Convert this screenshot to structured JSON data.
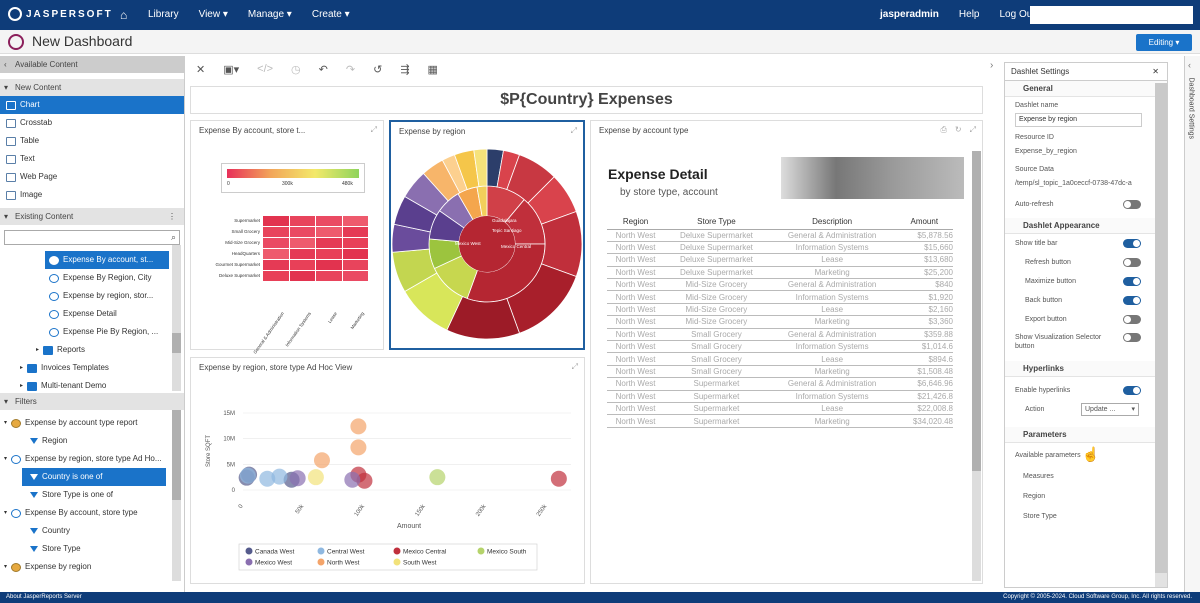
{
  "topbar": {
    "logo": "JASPERSOFT",
    "nav": [
      "Library",
      "View",
      "Manage",
      "Create"
    ],
    "user": "jasperadmin",
    "help": "Help",
    "logout": "Log Out"
  },
  "titlebar": {
    "title": "New Dashboard",
    "mode": "Editing ▾"
  },
  "left": {
    "available_header": "Available Content",
    "new_content_header": "New Content",
    "new_items": [
      "Chart",
      "Crosstab",
      "Table",
      "Text",
      "Web Page",
      "Image"
    ],
    "existing_header": "Existing Content",
    "existing_items": [
      "Expense By account, st...",
      "Expense By Region, City",
      "Expense by region, stor...",
      "Expense Detail",
      "Expense Pie By Region, ..."
    ],
    "folders": [
      "Reports",
      "Invoices Templates",
      "Multi-tenant Demo"
    ],
    "filters_header": "Filters",
    "filter_tree": [
      {
        "label": "Expense by account type report",
        "level": 0,
        "kind": "report"
      },
      {
        "label": "Region",
        "level": 1,
        "kind": "filter"
      },
      {
        "label": "Expense by region, store type Ad Ho...",
        "level": 0,
        "kind": "chart"
      },
      {
        "label": "Country is one of",
        "level": 1,
        "kind": "filter",
        "selected": true
      },
      {
        "label": "Store Type is one of",
        "level": 1,
        "kind": "filter"
      },
      {
        "label": "Expense By account, store type",
        "level": 0,
        "kind": "chart"
      },
      {
        "label": "Country",
        "level": 1,
        "kind": "filter"
      },
      {
        "label": "Store Type",
        "level": 1,
        "kind": "filter"
      },
      {
        "label": "Expense by region",
        "level": 0,
        "kind": "report"
      }
    ]
  },
  "dashboard": {
    "title": "$P{Country} Expenses",
    "dashlet1_title": "Expense By account, store t...",
    "dashlet2_title": "Expense by region",
    "dashlet3_title": "Expense by account type",
    "dashlet4_title": "Expense by region, store type Ad Hoc View",
    "heatmap": {
      "legend_ticks": [
        "0",
        "300k",
        "480k"
      ],
      "rows": [
        "Supermarket",
        "Small Grocery",
        "Mid-Size Grocery",
        "HeadQuarters",
        "Gourmet Supermarket",
        "Deluxe Supermarket"
      ],
      "cols": [
        "General & Administration",
        "Information Systems",
        "Lease",
        "Marketing"
      ]
    },
    "sunburst_labels": [
      "Guadalajara",
      "Tepic Santiago",
      "Mexico West",
      "Mexico Central"
    ],
    "detail": {
      "title": "Expense Detail",
      "subtitle": "by store type, account",
      "headers": [
        "Region",
        "Store Type",
        "Description",
        "Amount"
      ],
      "rows": [
        [
          "North West",
          "Deluxe Supermarket",
          "General & Administration",
          "$5,878.56"
        ],
        [
          "North West",
          "Deluxe Supermarket",
          "Information Systems",
          "$15,660"
        ],
        [
          "North West",
          "Deluxe Supermarket",
          "Lease",
          "$13,680"
        ],
        [
          "North West",
          "Deluxe Supermarket",
          "Marketing",
          "$25,200"
        ],
        [
          "North West",
          "Mid-Size Grocery",
          "General & Administration",
          "$840"
        ],
        [
          "North West",
          "Mid-Size Grocery",
          "Information Systems",
          "$1,920"
        ],
        [
          "North West",
          "Mid-Size Grocery",
          "Lease",
          "$2,160"
        ],
        [
          "North West",
          "Mid-Size Grocery",
          "Marketing",
          "$3,360"
        ],
        [
          "North West",
          "Small Grocery",
          "General & Administration",
          "$359.88"
        ],
        [
          "North West",
          "Small Grocery",
          "Information Systems",
          "$1,014.6"
        ],
        [
          "North West",
          "Small Grocery",
          "Lease",
          "$894.6"
        ],
        [
          "North West",
          "Small Grocery",
          "Marketing",
          "$1,508.48"
        ],
        [
          "North West",
          "Supermarket",
          "General & Administration",
          "$6,646.96"
        ],
        [
          "North West",
          "Supermarket",
          "Information Systems",
          "$21,426.8"
        ],
        [
          "North West",
          "Supermarket",
          "Lease",
          "$22,008.8"
        ],
        [
          "North West",
          "Supermarket",
          "Marketing",
          "$34,020.48"
        ]
      ]
    }
  },
  "chart_data": {
    "type": "scatter",
    "xlabel": "Amount",
    "ylabel": "Store SQFT",
    "x_ticks": [
      "0",
      "50k",
      "100k",
      "150k",
      "200k",
      "250k"
    ],
    "y_ticks": [
      "0",
      "5M",
      "10M",
      "15M"
    ],
    "xlim": [
      0,
      270000
    ],
    "ylim": [
      0,
      15000000
    ],
    "series": [
      {
        "name": "Canada West",
        "color": "#555b8c",
        "points": [
          [
            3000,
            2400000
          ],
          [
            5000,
            3000000
          ],
          [
            40000,
            2000000
          ]
        ]
      },
      {
        "name": "Central West",
        "color": "#8fb8e0",
        "points": [
          [
            4000,
            2800000
          ],
          [
            20000,
            2200000
          ],
          [
            30000,
            2600000
          ]
        ]
      },
      {
        "name": "Mexico Central",
        "color": "#c0303d",
        "points": [
          [
            95000,
            3000000
          ],
          [
            100000,
            1800000
          ],
          [
            260000,
            2200000
          ]
        ]
      },
      {
        "name": "Mexico South",
        "color": "#b5d36b",
        "points": [
          [
            160000,
            2500000
          ]
        ]
      },
      {
        "name": "Mexico West",
        "color": "#8a6fb0",
        "points": [
          [
            90000,
            2000000
          ],
          [
            45000,
            2300000
          ]
        ]
      },
      {
        "name": "North West",
        "color": "#f4a46a",
        "points": [
          [
            95000,
            12400000
          ],
          [
            65000,
            5800000
          ],
          [
            95000,
            8300000
          ]
        ]
      },
      {
        "name": "South West",
        "color": "#f2e27a",
        "points": [
          [
            60000,
            2500000
          ]
        ]
      }
    ]
  },
  "settings": {
    "header": "Dashlet Settings",
    "general": "General",
    "dashlet_name_label": "Dashlet name",
    "dashlet_name": "Expense by region",
    "resource_id_label": "Resource ID",
    "resource_id": "Expense_by_region",
    "source_label": "Source Data",
    "source": "/temp/sl_topic_1a0ceccf-0738-47dc-a",
    "auto_refresh": "Auto-refresh",
    "appearance": "Dashlet Appearance",
    "show_title": "Show title bar",
    "refresh_button": "Refresh button",
    "maximize_button": "Maximize button",
    "back_button": "Back button",
    "export_button": "Export button",
    "viz_selector": "Show Visualization Selector button",
    "hyperlinks": "Hyperlinks",
    "enable_hyperlinks": "Enable hyperlinks",
    "action_label": "Action",
    "action_value": "Update ...",
    "parameters": "Parameters",
    "available_params": "Available parameters",
    "params": [
      "Measures",
      "Region",
      "Store Type"
    ],
    "side_tab": "Dashboard Settings"
  },
  "footer": {
    "left": "About JasperReports Server",
    "right": "Copyright © 2005-2024. Cloud Software Group, Inc. All rights reserved."
  }
}
